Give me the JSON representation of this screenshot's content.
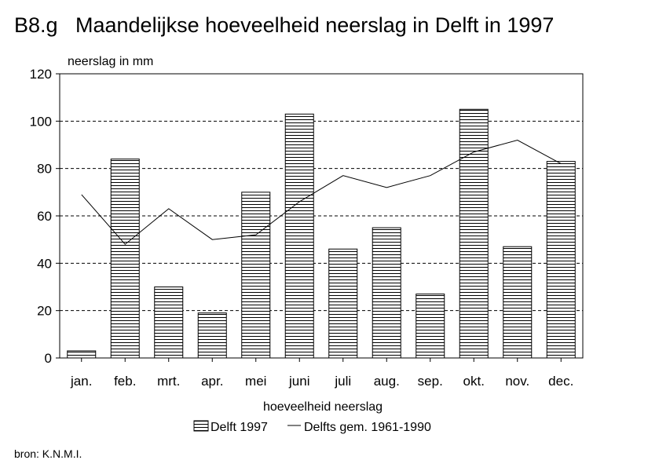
{
  "figure_label": "B8.g",
  "title": "Maandelijkse hoeveelheid neerslag in Delft in 1997",
  "source": "bron: K.N.M.I.",
  "chart_data": {
    "type": "bar",
    "title": "Maandelijkse hoeveelheid neerslag in Delft in 1997",
    "ylabel": "neerslag in mm",
    "xlabel": "hoeveelheid neerslag",
    "ylim": [
      0,
      120
    ],
    "yticks": [
      0,
      20,
      40,
      60,
      80,
      100,
      120
    ],
    "grid": "horizontal dashed",
    "legend_position": "bottom",
    "categories": [
      "jan.",
      "feb.",
      "mrt.",
      "apr.",
      "mei",
      "juni",
      "juli",
      "aug.",
      "sep.",
      "okt.",
      "nov.",
      "dec."
    ],
    "series": [
      {
        "name": "Delft 1997",
        "type": "bar",
        "pattern": "horizontal-hatch",
        "values": [
          3,
          84,
          30,
          19,
          70,
          103,
          46,
          55,
          27,
          105,
          47,
          83
        ]
      },
      {
        "name": "Delfts gem. 1961-1990",
        "type": "line",
        "values": [
          69,
          48,
          63,
          50,
          52,
          66,
          77,
          72,
          77,
          87,
          92,
          82
        ]
      }
    ]
  }
}
